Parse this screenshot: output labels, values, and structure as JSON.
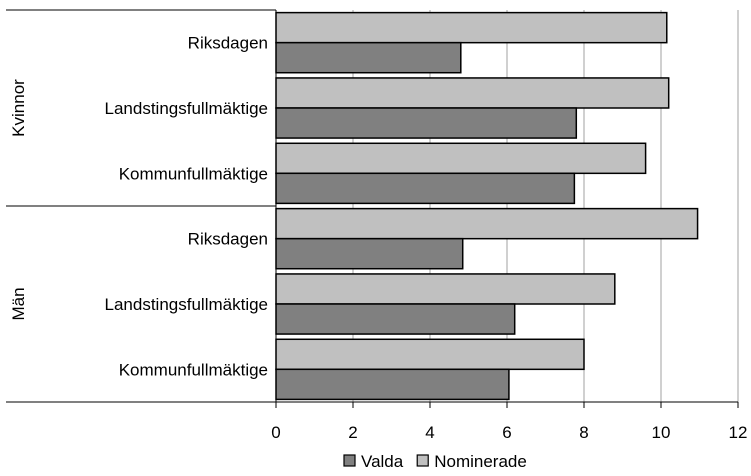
{
  "chart_data": {
    "type": "bar",
    "orientation": "horizontal",
    "title": "",
    "xlabel": "",
    "ylabel": "",
    "xlim": [
      0,
      12
    ],
    "xticks": [
      0,
      2,
      4,
      6,
      8,
      10,
      12
    ],
    "grid": "vertical",
    "legend": "bottom",
    "groups": [
      {
        "name": "Kvinnor",
        "categories": [
          {
            "label": "Riksdagen",
            "values": {
              "Nominerade": 10.15,
              "Valda": 4.8
            }
          },
          {
            "label": "Landstingsfullmäktige",
            "values": {
              "Nominerade": 10.2,
              "Valda": 7.8
            }
          },
          {
            "label": "Kommunfullmäktige",
            "values": {
              "Nominerade": 9.6,
              "Valda": 7.75
            }
          }
        ]
      },
      {
        "name": "Män",
        "categories": [
          {
            "label": "Riksdagen",
            "values": {
              "Nominerade": 10.95,
              "Valda": 4.85
            }
          },
          {
            "label": "Landstingsfullmäktige",
            "values": {
              "Nominerade": 8.8,
              "Valda": 6.2
            }
          },
          {
            "label": "Kommunfullmäktige",
            "values": {
              "Nominerade": 8.0,
              "Valda": 6.05
            }
          }
        ]
      }
    ],
    "series": [
      {
        "name": "Valda",
        "color": "#808080"
      },
      {
        "name": "Nominerade",
        "color": "#c0c0c0"
      }
    ]
  }
}
